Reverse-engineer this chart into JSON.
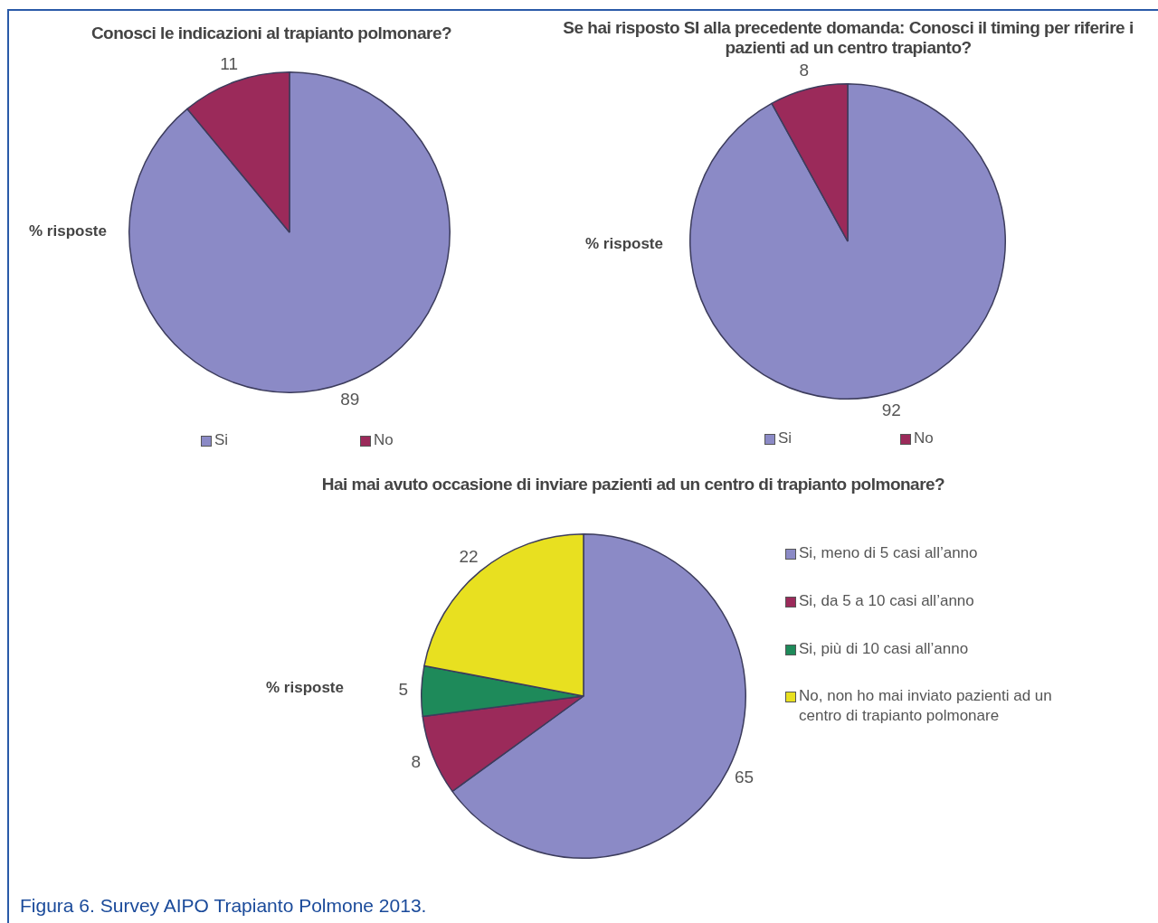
{
  "chart_data": [
    {
      "type": "pie",
      "title": "Conosci le indicazioni al trapianto polmonare?",
      "ylabel": "% risposte",
      "categories": [
        "Si",
        "No"
      ],
      "values": [
        89,
        11
      ],
      "colors": [
        "#8b8ac6",
        "#9b2a5a"
      ],
      "data_labels": true,
      "legend": "bottom"
    },
    {
      "type": "pie",
      "title": "Se hai risposto SI alla precedente domanda: Conosci il timing per riferire i pazienti ad un centro trapianto?",
      "ylabel": "% risposte",
      "categories": [
        "Si",
        "No"
      ],
      "values": [
        92,
        8
      ],
      "colors": [
        "#8b8ac6",
        "#9b2a5a"
      ],
      "data_labels": true,
      "legend": "bottom"
    },
    {
      "type": "pie",
      "title": "Hai mai avuto occasione di inviare pazienti ad un centro di trapianto polmonare?",
      "ylabel": "% risposte",
      "categories": [
        "Si, meno di 5 casi all’anno",
        "Si, da 5 a 10 casi all’anno",
        "Si, più di 10 casi all’anno",
        "No, non ho mai inviato pazienti ad un centro di trapianto polmonare"
      ],
      "values": [
        65,
        8,
        5,
        22
      ],
      "colors": [
        "#8b8ac6",
        "#9b2a5a",
        "#1e8a5a",
        "#e8e020"
      ],
      "data_labels": true,
      "legend": "right",
      "annotations": [
        "Figura 6. Survey AIPO Trapianto Polmone 2013."
      ]
    }
  ]
}
